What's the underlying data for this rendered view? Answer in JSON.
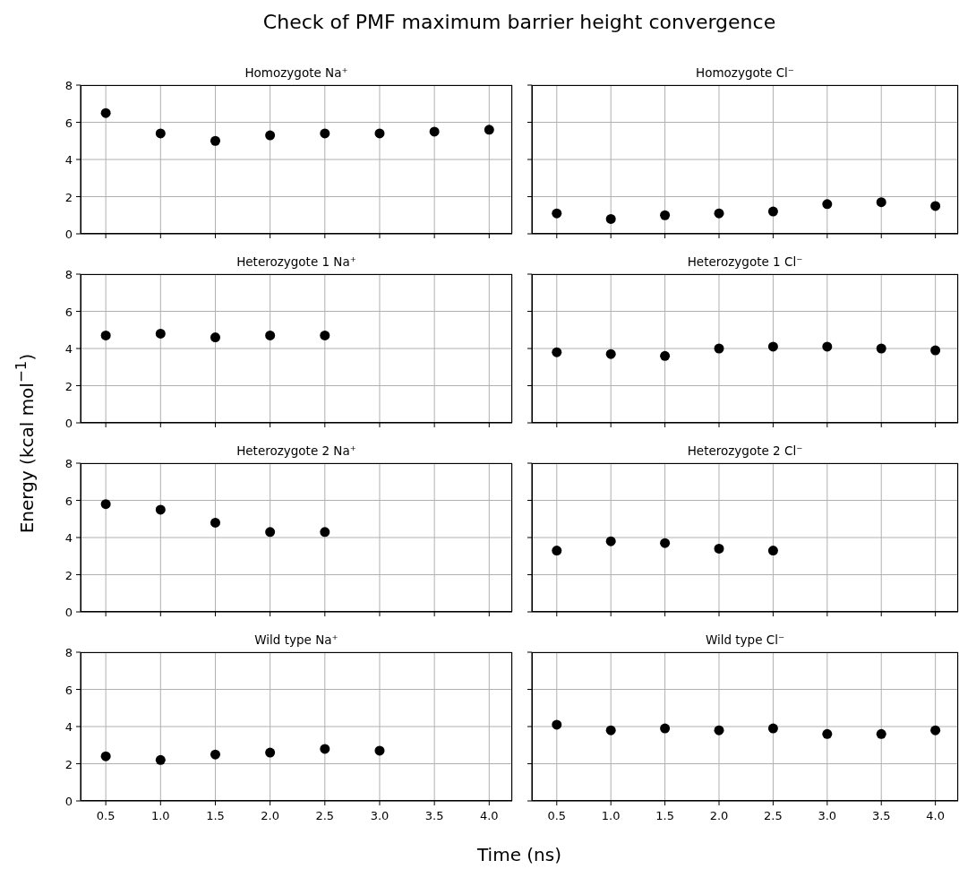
{
  "chart_data": [
    {
      "type": "scatter",
      "title": "Homozygote Na⁺",
      "annotations": [
        "Check of PMF maximum barrier height convergence",
        "Energy (kcal mol$^{−1}$)",
        "Time (ns)"
      ],
      "x": [
        0.5,
        1.0,
        1.5,
        2.0,
        2.5,
        3.0,
        3.5,
        4.0
      ],
      "values": [
        6.5,
        5.4,
        5.0,
        5.3,
        5.4,
        5.4,
        5.5,
        5.6
      ],
      "color": "#000000",
      "marker": "circle",
      "grid": true,
      "xlim": [
        0.27,
        4.21
      ],
      "xticks": [
        0.5,
        1,
        1.5,
        2,
        2.5,
        3,
        3.5,
        4
      ],
      "ylim": [
        0,
        8
      ],
      "yticks": [
        0,
        2,
        4,
        6,
        8
      ],
      "tick_labels": "y"
    },
    {
      "type": "scatter",
      "title": "Homozygote Cl⁻",
      "x": [
        0.5,
        1.0,
        1.5,
        2.0,
        2.5,
        3.0,
        3.5,
        4.0
      ],
      "values": [
        1.1,
        0.8,
        1.0,
        1.1,
        1.2,
        1.6,
        1.7,
        1.5
      ],
      "color": "#000000",
      "marker": "circle",
      "grid": true,
      "xlim": [
        0.27,
        4.21
      ],
      "xticks": [
        0.5,
        1,
        1.5,
        2,
        2.5,
        3,
        3.5,
        4
      ],
      "ylim": [
        0,
        8
      ],
      "yticks": [
        0,
        2,
        4,
        6,
        8
      ],
      "tick_labels": false
    },
    {
      "type": "scatter",
      "title": "Heterozygote 1 Na⁺",
      "x": [
        0.5,
        1.0,
        1.5,
        2.0,
        2.5
      ],
      "values": [
        4.7,
        4.8,
        4.6,
        4.7,
        4.7
      ],
      "color": "#000000",
      "marker": "circle",
      "grid": true,
      "xlim": [
        0.27,
        4.21
      ],
      "xticks": [
        0.5,
        1,
        1.5,
        2,
        2.5,
        3,
        3.5,
        4
      ],
      "ylim": [
        0,
        8
      ],
      "yticks": [
        0,
        2,
        4,
        6,
        8
      ],
      "tick_labels": "y"
    },
    {
      "type": "scatter",
      "title": "Heterozygote 1 Cl⁻",
      "x": [
        0.5,
        1.0,
        1.5,
        2.0,
        2.5,
        3.0,
        3.5,
        4.0
      ],
      "values": [
        3.8,
        3.7,
        3.6,
        4.0,
        4.1,
        4.1,
        4.0,
        3.9
      ],
      "color": "#000000",
      "marker": "circle",
      "grid": true,
      "xlim": [
        0.27,
        4.21
      ],
      "xticks": [
        0.5,
        1,
        1.5,
        2,
        2.5,
        3,
        3.5,
        4
      ],
      "ylim": [
        0,
        8
      ],
      "yticks": [
        0,
        2,
        4,
        6,
        8
      ],
      "tick_labels": false
    },
    {
      "type": "scatter",
      "title": "Heterozygote 2 Na⁺",
      "x": [
        0.5,
        1.0,
        1.5,
        2.0,
        2.5
      ],
      "values": [
        5.8,
        5.5,
        4.8,
        4.3,
        4.3
      ],
      "color": "#000000",
      "marker": "circle",
      "grid": true,
      "xlim": [
        0.27,
        4.21
      ],
      "xticks": [
        0.5,
        1,
        1.5,
        2,
        2.5,
        3,
        3.5,
        4
      ],
      "ylim": [
        0,
        8
      ],
      "yticks": [
        0,
        2,
        4,
        6,
        8
      ],
      "tick_labels": "y"
    },
    {
      "type": "scatter",
      "title": "Heterozygote 2 Cl⁻",
      "x": [
        0.5,
        1.0,
        1.5,
        2.0,
        2.5
      ],
      "values": [
        3.3,
        3.8,
        3.7,
        3.4,
        3.3
      ],
      "color": "#000000",
      "marker": "circle",
      "grid": true,
      "xlim": [
        0.27,
        4.21
      ],
      "xticks": [
        0.5,
        1,
        1.5,
        2,
        2.5,
        3,
        3.5,
        4
      ],
      "ylim": [
        0,
        8
      ],
      "yticks": [
        0,
        2,
        4,
        6,
        8
      ],
      "tick_labels": false
    },
    {
      "type": "scatter",
      "title": "Wild type Na⁺",
      "x": [
        0.5,
        1.0,
        1.5,
        2.0,
        2.5,
        3.0
      ],
      "values": [
        2.4,
        2.2,
        2.5,
        2.6,
        2.8,
        2.7
      ],
      "color": "#000000",
      "marker": "circle",
      "grid": true,
      "xlim": [
        0.27,
        4.21
      ],
      "xticks": [
        0.5,
        {
          "value": 1,
          "label": "1.0"
        },
        1.5,
        {
          "value": 2,
          "label": "2.0"
        },
        2.5,
        {
          "value": 3,
          "label": "3.0"
        },
        3.5,
        {
          "value": 4,
          "label": "4.0"
        }
      ],
      "ylim": [
        0,
        8
      ],
      "yticks": [
        0,
        2,
        4,
        6,
        8
      ]
    },
    {
      "type": "scatter",
      "title": "Wild type Cl⁻",
      "x": [
        0.5,
        1.0,
        1.5,
        2.0,
        2.5,
        3.0,
        3.5,
        4.0
      ],
      "values": [
        4.1,
        3.8,
        3.9,
        3.8,
        3.9,
        3.6,
        3.6,
        3.8
      ],
      "color": "#000000",
      "marker": "circle",
      "grid": true,
      "xlim": [
        0.27,
        4.21
      ],
      "xticks": [
        0.5,
        {
          "value": 1,
          "label": "1.0"
        },
        1.5,
        {
          "value": 2,
          "label": "2.0"
        },
        2.5,
        {
          "value": 3,
          "label": "3.0"
        },
        3.5,
        {
          "value": 4,
          "label": "4.0"
        }
      ],
      "ylim": [
        0,
        8
      ],
      "yticks": [
        0,
        2,
        4,
        6,
        8
      ],
      "tick_labels": "x"
    }
  ]
}
